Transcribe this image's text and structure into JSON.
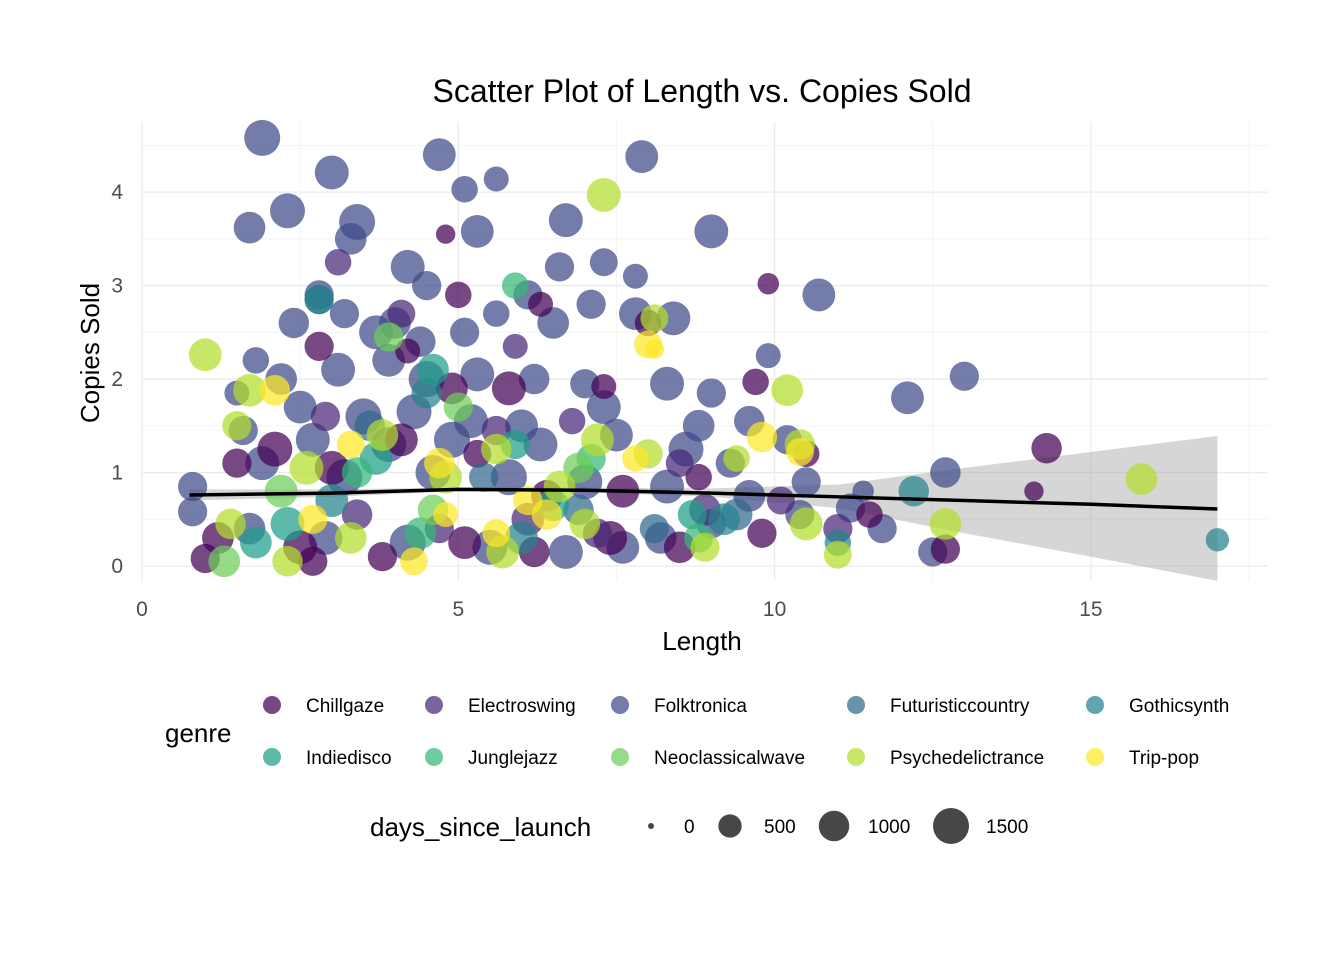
{
  "chart_data": {
    "type": "scatter",
    "title": "Scatter Plot of Length vs. Copies Sold",
    "xlabel": "Length",
    "ylabel": "Copies Sold",
    "xlim": [
      0,
      17.8
    ],
    "ylim": [
      -0.15,
      4.75
    ],
    "x_ticks": [
      0,
      5,
      10,
      15
    ],
    "y_ticks": [
      0,
      1,
      2,
      3,
      4
    ],
    "grid": true,
    "legend_position": "bottom",
    "color_legend": {
      "title": "genre",
      "entries": [
        {
          "label": "Chillgaze",
          "color": "#440154"
        },
        {
          "label": "Electroswing",
          "color": "#482878"
        },
        {
          "label": "Folktronica",
          "color": "#3E4A89"
        },
        {
          "label": "Futuristiccountry",
          "color": "#31688E"
        },
        {
          "label": "Gothicsynth",
          "color": "#26828E"
        },
        {
          "label": "Indiedisco",
          "color": "#1F9E89"
        },
        {
          "label": "Junglejazz",
          "color": "#35B779"
        },
        {
          "label": "Neoclassicalwave",
          "color": "#6DCD59"
        },
        {
          "label": "Psychedelictrance",
          "color": "#B4DE2C"
        },
        {
          "label": "Trip-pop",
          "color": "#FDE725"
        }
      ]
    },
    "size_legend": {
      "title": "days_since_launch",
      "entries": [
        {
          "label": "0",
          "value": 0
        },
        {
          "label": "500",
          "value": 500
        },
        {
          "label": "1000",
          "value": 1000
        },
        {
          "label": "1500",
          "value": 1500
        }
      ]
    },
    "smooth_line": {
      "x": [
        0.75,
        3,
        5,
        7,
        9,
        11,
        13,
        15,
        17
      ],
      "y": [
        0.76,
        0.78,
        0.82,
        0.81,
        0.78,
        0.74,
        0.7,
        0.66,
        0.61
      ],
      "ci_lower": [
        0.7,
        0.74,
        0.8,
        0.79,
        0.74,
        0.62,
        0.35,
        0.1,
        -0.16
      ],
      "ci_upper": [
        0.82,
        0.82,
        0.84,
        0.84,
        0.83,
        0.87,
        1.05,
        1.22,
        1.39
      ]
    },
    "series": [
      {
        "genre": "Folktronica",
        "points": [
          [
            1.9,
            4.58,
            1500
          ],
          [
            3.0,
            4.21,
            1300
          ],
          [
            2.3,
            3.8,
            1400
          ],
          [
            4.7,
            4.4,
            1200
          ],
          [
            7.9,
            4.38,
            1200
          ],
          [
            5.1,
            4.03,
            700
          ],
          [
            5.6,
            4.14,
            600
          ],
          [
            1.7,
            3.62,
            1100
          ],
          [
            3.4,
            3.68,
            1500
          ],
          [
            3.3,
            3.5,
            1100
          ],
          [
            4.2,
            3.2,
            1300
          ],
          [
            4.5,
            3.0,
            900
          ],
          [
            5.3,
            3.58,
            1200
          ],
          [
            6.7,
            3.7,
            1300
          ],
          [
            6.6,
            3.2,
            900
          ],
          [
            7.3,
            3.25,
            800
          ],
          [
            7.8,
            3.1,
            600
          ],
          [
            9.0,
            3.58,
            1300
          ],
          [
            10.7,
            2.9,
            1200
          ],
          [
            2.8,
            2.9,
            900
          ],
          [
            3.2,
            2.7,
            900
          ],
          [
            2.4,
            2.6,
            1000
          ],
          [
            3.7,
            2.5,
            1300
          ],
          [
            4.0,
            2.6,
            1100
          ],
          [
            4.4,
            2.4,
            1000
          ],
          [
            5.1,
            2.5,
            900
          ],
          [
            5.6,
            2.7,
            700
          ],
          [
            6.1,
            2.9,
            900
          ],
          [
            6.5,
            2.6,
            1100
          ],
          [
            7.1,
            2.8,
            900
          ],
          [
            7.8,
            2.7,
            1200
          ],
          [
            8.4,
            2.65,
            1300
          ],
          [
            1.8,
            2.2,
            700
          ],
          [
            2.2,
            2.0,
            1100
          ],
          [
            3.1,
            2.1,
            1300
          ],
          [
            3.9,
            2.2,
            1200
          ],
          [
            4.5,
            2.0,
            1500
          ],
          [
            5.3,
            2.05,
            1300
          ],
          [
            6.2,
            2.0,
            1000
          ],
          [
            7.0,
            1.95,
            900
          ],
          [
            8.3,
            1.95,
            1300
          ],
          [
            9.0,
            1.85,
            900
          ],
          [
            9.9,
            2.25,
            600
          ],
          [
            12.1,
            1.8,
            1200
          ],
          [
            13.0,
            2.03,
            900
          ],
          [
            1.5,
            1.85,
            600
          ],
          [
            2.5,
            1.7,
            1200
          ],
          [
            3.5,
            1.6,
            1500
          ],
          [
            4.3,
            1.65,
            1400
          ],
          [
            5.2,
            1.55,
            1300
          ],
          [
            6.0,
            1.5,
            1200
          ],
          [
            7.3,
            1.7,
            1300
          ],
          [
            8.8,
            1.5,
            1100
          ],
          [
            9.6,
            1.55,
            1000
          ],
          [
            10.2,
            1.35,
            900
          ],
          [
            1.6,
            1.45,
            900
          ],
          [
            2.7,
            1.35,
            1300
          ],
          [
            3.9,
            1.3,
            1400
          ],
          [
            4.9,
            1.35,
            1500
          ],
          [
            6.3,
            1.3,
            1300
          ],
          [
            7.5,
            1.4,
            1200
          ],
          [
            8.6,
            1.25,
            1400
          ],
          [
            9.3,
            1.1,
            900
          ],
          [
            0.8,
            0.85,
            900
          ],
          [
            0.8,
            0.58,
            900
          ],
          [
            1.9,
            1.1,
            1300
          ],
          [
            3.2,
            0.95,
            1500
          ],
          [
            4.6,
            1.0,
            1400
          ],
          [
            5.8,
            0.95,
            1500
          ],
          [
            7.0,
            0.9,
            1400
          ],
          [
            8.3,
            0.85,
            1300
          ],
          [
            9.6,
            0.75,
            1100
          ],
          [
            10.5,
            0.9,
            900
          ],
          [
            11.2,
            0.62,
            900
          ],
          [
            11.7,
            0.4,
            900
          ],
          [
            12.5,
            0.15,
            900
          ],
          [
            12.7,
            1.0,
            1000
          ],
          [
            1.7,
            0.4,
            1100
          ],
          [
            2.9,
            0.3,
            1300
          ],
          [
            4.2,
            0.25,
            1500
          ],
          [
            5.5,
            0.2,
            1400
          ],
          [
            6.7,
            0.15,
            1300
          ],
          [
            7.6,
            0.2,
            1200
          ],
          [
            8.2,
            0.3,
            1100
          ],
          [
            9.0,
            0.45,
            900
          ],
          [
            10.4,
            0.55,
            900
          ],
          [
            11.4,
            0.8,
            400
          ]
        ]
      },
      {
        "genre": "Chillgaze",
        "points": [
          [
            4.8,
            3.55,
            300
          ],
          [
            5.0,
            2.9,
            700
          ],
          [
            6.3,
            2.8,
            600
          ],
          [
            8.0,
            2.6,
            700
          ],
          [
            9.9,
            3.02,
            400
          ],
          [
            2.8,
            2.35,
            900
          ],
          [
            4.2,
            2.3,
            600
          ],
          [
            5.8,
            1.9,
            1300
          ],
          [
            4.9,
            1.9,
            1100
          ],
          [
            7.3,
            1.92,
            600
          ],
          [
            9.7,
            1.97,
            700
          ],
          [
            1.5,
            1.1,
            900
          ],
          [
            2.1,
            1.25,
            1400
          ],
          [
            3.0,
            1.05,
            1300
          ],
          [
            4.1,
            1.35,
            1200
          ],
          [
            5.3,
            1.2,
            800
          ],
          [
            6.4,
            0.75,
            1100
          ],
          [
            7.6,
            0.8,
            1200
          ],
          [
            8.8,
            0.95,
            700
          ],
          [
            10.5,
            1.2,
            700
          ],
          [
            14.3,
            1.26,
            1000
          ],
          [
            1.2,
            0.3,
            1100
          ],
          [
            2.5,
            0.2,
            1300
          ],
          [
            3.8,
            0.1,
            900
          ],
          [
            5.1,
            0.25,
            1200
          ],
          [
            6.2,
            0.15,
            1000
          ],
          [
            7.4,
            0.3,
            1300
          ],
          [
            8.5,
            0.2,
            1100
          ],
          [
            9.8,
            0.35,
            900
          ],
          [
            11.5,
            0.55,
            700
          ],
          [
            12.7,
            0.18,
            900
          ],
          [
            14.1,
            0.8,
            300
          ],
          [
            1.0,
            0.08,
            900
          ],
          [
            2.7,
            0.05,
            900
          ]
        ]
      },
      {
        "genre": "Electroswing",
        "points": [
          [
            3.1,
            3.25,
            700
          ],
          [
            4.1,
            2.7,
            800
          ],
          [
            5.9,
            2.35,
            600
          ],
          [
            2.9,
            1.6,
            900
          ],
          [
            5.6,
            1.45,
            900
          ],
          [
            6.8,
            1.55,
            700
          ],
          [
            8.5,
            1.1,
            800
          ],
          [
            3.4,
            0.55,
            1000
          ],
          [
            4.7,
            0.4,
            900
          ],
          [
            6.1,
            0.5,
            1200
          ],
          [
            7.2,
            0.35,
            900
          ],
          [
            8.9,
            0.6,
            1100
          ],
          [
            10.1,
            0.7,
            800
          ],
          [
            11.0,
            0.4,
            900
          ]
        ]
      },
      {
        "genre": "Futuristiccountry",
        "points": [
          [
            2.8,
            2.85,
            900
          ],
          [
            3.6,
            1.5,
            1000
          ],
          [
            5.4,
            0.95,
            900
          ],
          [
            6.9,
            0.6,
            1000
          ],
          [
            8.1,
            0.4,
            900
          ],
          [
            9.4,
            0.55,
            1100
          ]
        ]
      },
      {
        "genre": "Gothicsynth",
        "points": [
          [
            2.8,
            2.85,
            900
          ],
          [
            4.5,
            1.85,
            1000
          ],
          [
            3.0,
            0.7,
            1200
          ],
          [
            6.0,
            0.3,
            1200
          ],
          [
            9.2,
            0.5,
            1100
          ],
          [
            11.0,
            0.25,
            700
          ],
          [
            12.2,
            0.8,
            1000
          ],
          [
            17.0,
            0.28,
            500
          ]
        ]
      },
      {
        "genre": "Indiedisco",
        "points": [
          [
            4.6,
            2.1,
            1100
          ],
          [
            3.7,
            1.15,
            1200
          ],
          [
            5.9,
            1.3,
            900
          ],
          [
            2.3,
            0.45,
            1300
          ],
          [
            6.5,
            0.65,
            1100
          ],
          [
            8.7,
            0.55,
            900
          ],
          [
            1.8,
            0.25,
            1100
          ]
        ]
      },
      {
        "genre": "Junglejazz",
        "points": [
          [
            5.9,
            3.0,
            700
          ],
          [
            3.4,
            1.0,
            1000
          ],
          [
            7.1,
            1.15,
            900
          ],
          [
            4.4,
            0.35,
            1100
          ],
          [
            8.8,
            0.3,
            900
          ]
        ]
      },
      {
        "genre": "Neoclassicalwave",
        "points": [
          [
            3.9,
            2.45,
            900
          ],
          [
            5.0,
            1.7,
            900
          ],
          [
            2.2,
            0.8,
            1200
          ],
          [
            6.9,
            1.05,
            1000
          ],
          [
            4.6,
            0.6,
            1000
          ],
          [
            1.3,
            0.05,
            1100
          ]
        ]
      },
      {
        "genre": "Psychedelictrance",
        "points": [
          [
            7.3,
            3.97,
            1300
          ],
          [
            1.0,
            2.26,
            1200
          ],
          [
            1.7,
            1.88,
            1200
          ],
          [
            8.1,
            2.65,
            800
          ],
          [
            10.2,
            1.88,
            1100
          ],
          [
            10.4,
            1.3,
            1000
          ],
          [
            1.5,
            1.5,
            900
          ],
          [
            3.8,
            1.4,
            1100
          ],
          [
            5.6,
            1.25,
            1000
          ],
          [
            7.2,
            1.35,
            1200
          ],
          [
            8.0,
            1.2,
            900
          ],
          [
            2.6,
            1.05,
            1300
          ],
          [
            4.8,
            0.95,
            1200
          ],
          [
            6.6,
            0.85,
            1100
          ],
          [
            9.4,
            1.15,
            700
          ],
          [
            15.8,
            0.93,
            1100
          ],
          [
            12.7,
            0.45,
            1100
          ],
          [
            10.5,
            0.45,
            1200
          ],
          [
            11.0,
            0.12,
            800
          ],
          [
            3.3,
            0.3,
            1100
          ],
          [
            5.7,
            0.15,
            1200
          ],
          [
            7.0,
            0.45,
            1000
          ],
          [
            8.9,
            0.2,
            900
          ],
          [
            1.4,
            0.45,
            1000
          ],
          [
            2.3,
            0.05,
            1000
          ]
        ]
      },
      {
        "genre": "Trip-pop",
        "points": [
          [
            2.1,
            1.88,
            1000
          ],
          [
            8.0,
            2.37,
            800
          ],
          [
            8.1,
            2.32,
            300
          ],
          [
            9.8,
            1.38,
            1000
          ],
          [
            10.4,
            1.22,
            800
          ],
          [
            3.3,
            1.3,
            800
          ],
          [
            4.7,
            1.1,
            1000
          ],
          [
            6.1,
            0.7,
            900
          ],
          [
            7.8,
            1.15,
            700
          ],
          [
            2.7,
            0.5,
            900
          ],
          [
            4.3,
            0.05,
            800
          ],
          [
            5.6,
            0.35,
            800
          ],
          [
            6.4,
            0.55,
            1000
          ],
          [
            4.8,
            0.55,
            600
          ]
        ]
      }
    ]
  }
}
